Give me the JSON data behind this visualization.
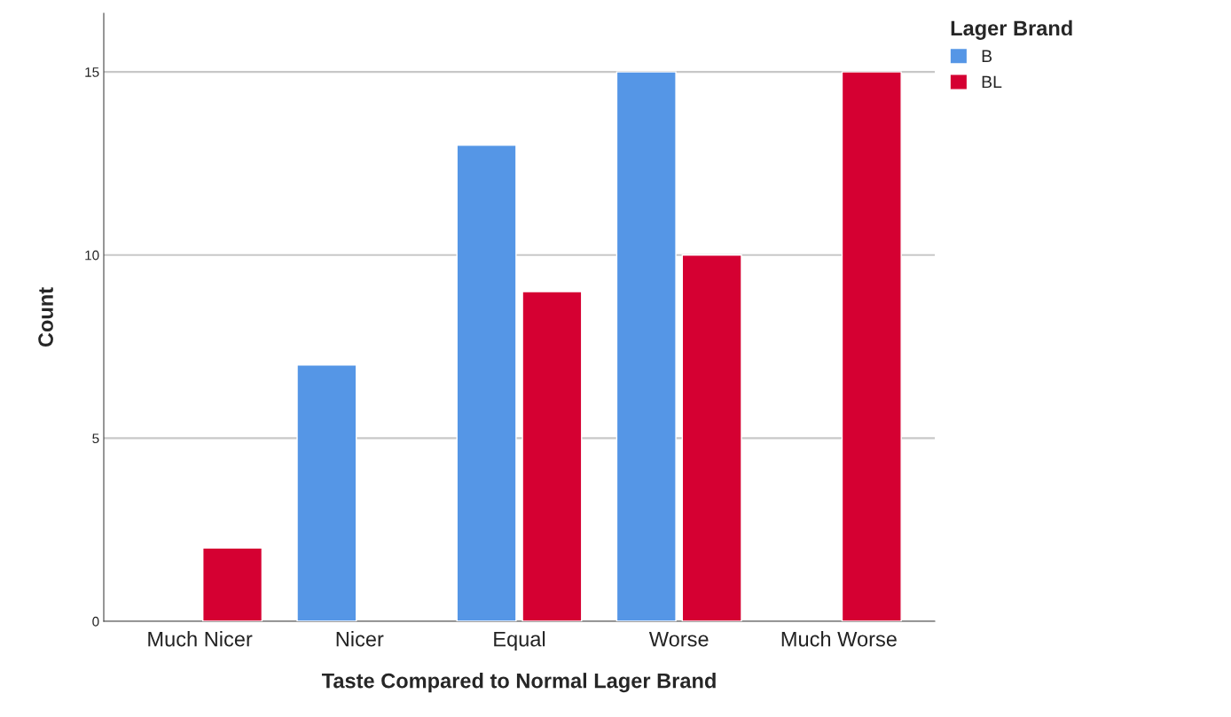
{
  "chart_data": {
    "type": "bar",
    "xlabel": "Taste Compared to Normal Lager Brand",
    "ylabel": "Count",
    "legend_title": "Lager Brand",
    "categories": [
      "Much Nicer",
      "Nicer",
      "Equal",
      "Worse",
      "Much Worse"
    ],
    "series": [
      {
        "name": "B",
        "color": "#5596e6",
        "values": [
          null,
          7,
          13,
          15,
          null
        ]
      },
      {
        "name": "BL",
        "color": "#d50032",
        "values": [
          2,
          null,
          9,
          10,
          15
        ]
      }
    ],
    "ylim": [
      0,
      16.6
    ],
    "yticks": [
      0,
      5,
      10,
      15
    ],
    "grid": "y",
    "legend": "top right"
  }
}
